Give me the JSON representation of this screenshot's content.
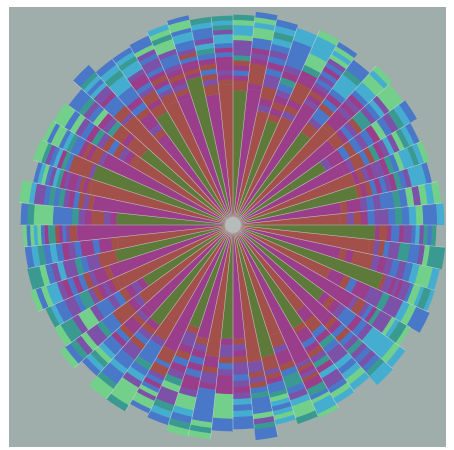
{
  "view": {
    "background": "#a0aeab",
    "separator_color": "#d2d8d6",
    "center_color": "#b5bcb9",
    "palette": {
      "green": "#5e7a3a",
      "magenta": "#9a3e8c",
      "rust": "#a3504a",
      "purple": "#7b52a8",
      "blue": "#4a78c8",
      "cyan": "#45aed0",
      "teal": "#3a9a92",
      "mint": "#72d08a"
    },
    "sector_pattern": [
      "green",
      "magenta",
      "rust",
      "green",
      "rust",
      "magenta",
      "green",
      "rust",
      "magenta",
      "green",
      "magenta",
      "rust"
    ],
    "ring_bands": [
      {
        "colors": [
          "rust",
          "magenta",
          "purple",
          "rust"
        ]
      },
      {
        "colors": [
          "magenta",
          "purple",
          "blue",
          "rust"
        ]
      },
      {
        "colors": [
          "blue",
          "purple",
          "teal",
          "magenta"
        ]
      },
      {
        "colors": [
          "cyan",
          "blue",
          "mint",
          "purple"
        ]
      },
      {
        "colors": [
          "mint",
          "cyan",
          "teal",
          "blue"
        ]
      }
    ],
    "sector_count": 60
  }
}
